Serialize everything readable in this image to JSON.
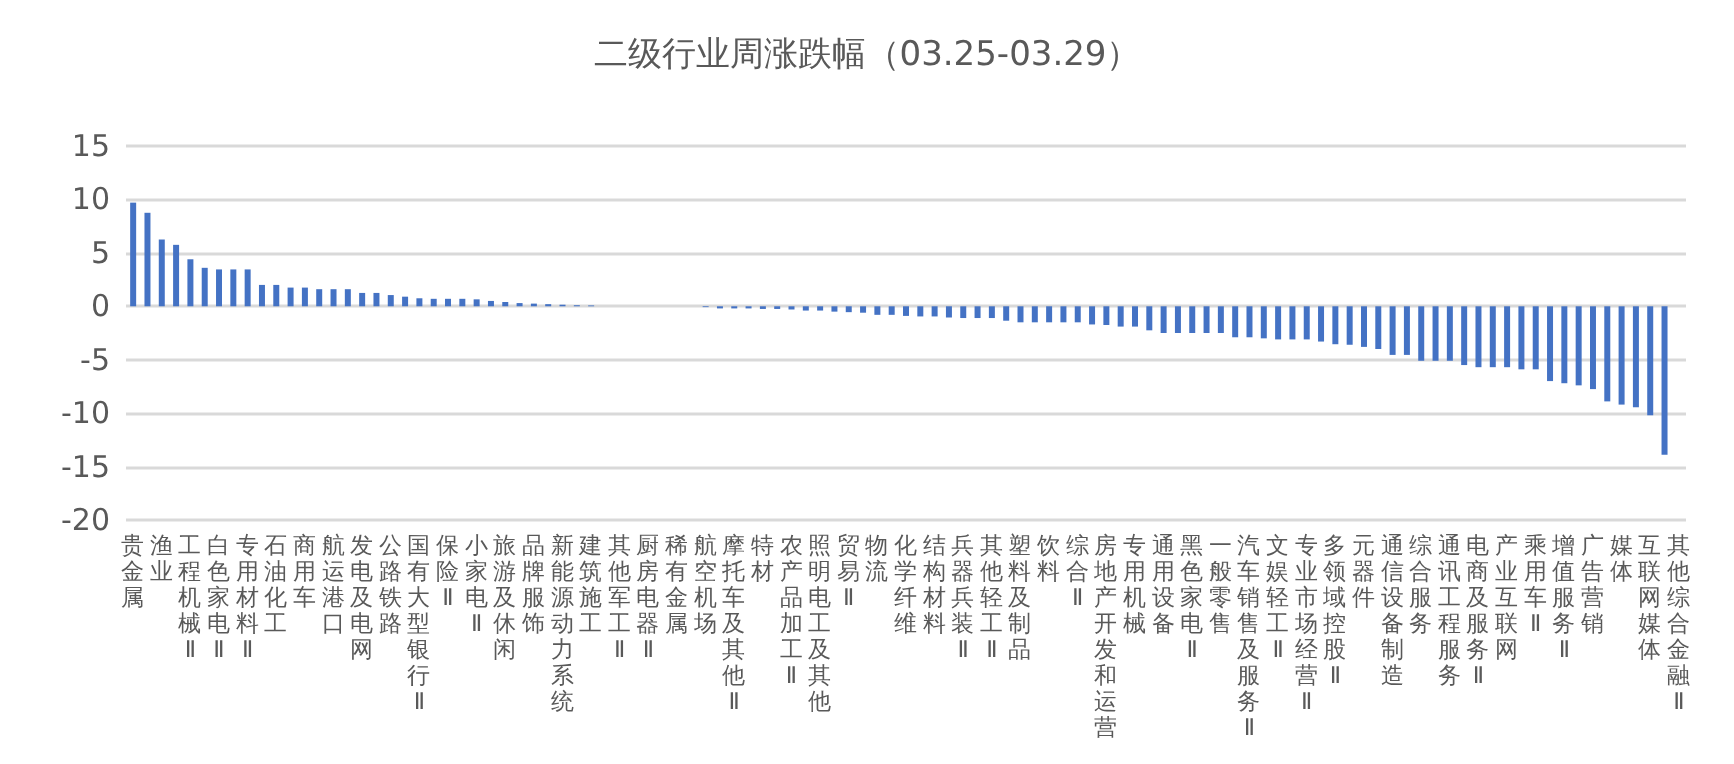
{
  "chart_data": {
    "type": "bar",
    "title": "二级行业周涨跌幅（03.25-03.29）",
    "categories": [
      "贵金属",
      null,
      "渔业",
      null,
      "工程机械Ⅱ",
      null,
      "白色家电Ⅱ",
      null,
      "专用材料Ⅱ",
      null,
      "石油化工",
      null,
      "商用车",
      null,
      "航运港口",
      null,
      "发电及电网",
      null,
      "公路铁路",
      null,
      "国有大型银行Ⅱ",
      null,
      "保险Ⅱ",
      null,
      "小家电Ⅱ",
      null,
      "旅游及休闲",
      null,
      "品牌服饰",
      null,
      "新能源动力系统",
      null,
      "建筑施工",
      null,
      "其他军工Ⅱ",
      null,
      "厨房电器Ⅱ",
      null,
      "稀有金属",
      null,
      "航空机场",
      null,
      "摩托车及其他Ⅱ",
      null,
      "特材",
      null,
      "农产品加工Ⅱ",
      null,
      "照明电工及其他",
      null,
      "贸易Ⅱ",
      null,
      "物流",
      null,
      "化学纤维",
      null,
      "结构材料",
      null,
      "兵器兵装Ⅱ",
      null,
      "其他轻工Ⅱ",
      null,
      "塑料及制品",
      null,
      "饮料",
      null,
      "综合Ⅱ",
      null,
      "房地产开发和运营",
      null,
      "专用机械",
      null,
      "通用设备",
      null,
      "黑色家电Ⅱ",
      null,
      "一般零售",
      null,
      "汽车销售及服务Ⅱ",
      null,
      "文娱轻工Ⅱ",
      null,
      "专业市场经营Ⅱ",
      null,
      "多领域控股Ⅱ",
      null,
      "元器件",
      null,
      "通信设备制造",
      null,
      "综合服务",
      null,
      "通讯工程服务",
      null,
      "电商及服务Ⅱ",
      null,
      "产业互联网",
      null,
      "乘用车Ⅱ",
      null,
      "增值服务Ⅱ",
      null,
      "广告营销",
      null,
      "媒体",
      null,
      "互联网媒体",
      null,
      "其他综合金融Ⅱ"
    ],
    "values": [
      9.7,
      8.75,
      6.25,
      5.75,
      4.4,
      3.6,
      3.45,
      3.45,
      3.45,
      2.0,
      2.0,
      1.75,
      1.75,
      1.6,
      1.6,
      1.6,
      1.25,
      1.25,
      1.05,
      0.9,
      0.75,
      0.7,
      0.7,
      0.7,
      0.65,
      0.5,
      0.4,
      0.3,
      0.25,
      0.2,
      0.15,
      0.1,
      0.08,
      null,
      null,
      null,
      null,
      null,
      null,
      null,
      -0.08,
      -0.2,
      -0.2,
      -0.2,
      -0.25,
      -0.25,
      -0.3,
      -0.4,
      -0.4,
      -0.5,
      -0.55,
      -0.6,
      -0.8,
      -0.8,
      -0.9,
      -0.95,
      -0.95,
      -1.05,
      -1.1,
      -1.1,
      -1.1,
      -1.35,
      -1.5,
      -1.5,
      -1.5,
      -1.5,
      -1.5,
      -1.7,
      -1.75,
      -1.9,
      -1.9,
      -2.25,
      -2.5,
      -2.5,
      -2.5,
      -2.5,
      -2.5,
      -2.9,
      -2.9,
      -3.0,
      -3.1,
      -3.1,
      -3.1,
      -3.3,
      -3.55,
      -3.6,
      -3.8,
      -4.0,
      -4.55,
      -4.55,
      -5.1,
      -5.1,
      -5.1,
      -5.5,
      -5.7,
      -5.7,
      -5.7,
      -5.9,
      -5.9,
      -7.0,
      -7.2,
      -7.4,
      -7.75,
      -8.9,
      -9.2,
      -9.45,
      -10.2,
      -13.9,
      null
    ],
    "color": "#4472c4",
    "ylim": [
      -20,
      15
    ],
    "yticks": [
      -20,
      -15,
      -10,
      -5,
      0,
      5,
      10,
      15
    ],
    "grid": true
  }
}
